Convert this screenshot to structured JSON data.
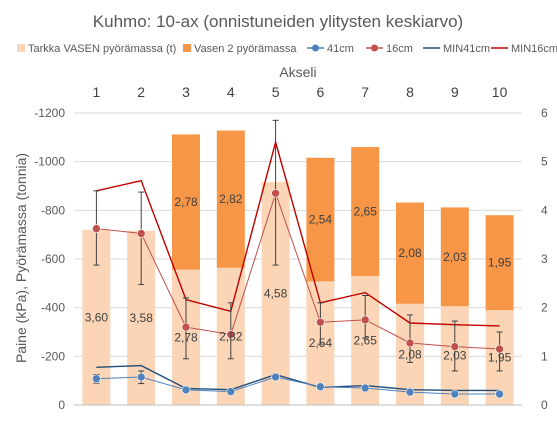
{
  "chart_data": {
    "type": "bar",
    "title": "Kuhmo: 10-ax (onnistuneiden ylitysten keskiarvo)",
    "xlabel": "Akseli",
    "ylabel": "Paine (kPa), Pyörämassa (tonnia)",
    "categories": [
      "1",
      "2",
      "3",
      "4",
      "5",
      "6",
      "7",
      "8",
      "9",
      "10"
    ],
    "ylim_left": [
      0,
      -1200
    ],
    "left_ticks": [
      "-1200",
      "-1000",
      "-800",
      "-600",
      "-400",
      "-200",
      "0"
    ],
    "ylim_right": [
      0,
      6
    ],
    "right_ticks": [
      "6",
      "5",
      "4",
      "3",
      "2",
      "1",
      "0"
    ],
    "bar_series": [
      {
        "name": "Tarkka VASEN pyörämassa (t)",
        "color": "#FBD5B5",
        "values": [
          3.6,
          3.58,
          2.78,
          2.82,
          4.58,
          2.54,
          2.65,
          2.08,
          2.03,
          1.95
        ],
        "labels": [
          "3,60",
          "3,58",
          "2,78",
          "2,82",
          "4,58",
          "2,54",
          "2,65",
          "2,08",
          "2,03",
          "1,95"
        ]
      },
      {
        "name": "Vasen 2 pyörämassa",
        "color": "#F79646",
        "values": [
          null,
          null,
          2.78,
          2.82,
          null,
          2.54,
          2.65,
          2.08,
          2.03,
          1.95
        ],
        "labels": [
          "",
          "",
          "2,78",
          "2,82",
          "",
          "2,54",
          "2,65",
          "2,08",
          "2,03",
          "1,95"
        ]
      }
    ],
    "line_series": [
      {
        "name": "41cm",
        "color": "#4F81BD",
        "marker": "circle",
        "values": [
          -108,
          -115,
          -62,
          -55,
          -115,
          -75,
          -70,
          -53,
          -45,
          -45
        ],
        "err_low": [
          -90,
          -88,
          -52,
          -43,
          -105,
          -67,
          -58,
          -48,
          -37,
          -34
        ],
        "err_high": [
          -125,
          -140,
          -70,
          -67,
          -127,
          -82,
          -80,
          -59,
          -56,
          -54
        ]
      },
      {
        "name": "16cm",
        "color": "#C0504D",
        "marker": "circle",
        "values": [
          -725,
          -705,
          -320,
          -290,
          -870,
          -340,
          -350,
          -255,
          -240,
          -230
        ],
        "err_low": [
          -575,
          -495,
          -190,
          -190,
          -575,
          -250,
          -275,
          -175,
          -140,
          -140
        ],
        "err_high": [
          -880,
          -875,
          -440,
          -420,
          -1170,
          -420,
          -450,
          -370,
          -345,
          -300
        ]
      },
      {
        "name": "MIN41cm",
        "color": "#1F4E79",
        "marker": "none",
        "values": [
          -155,
          -162,
          -68,
          -63,
          -125,
          -72,
          -80,
          -63,
          -60,
          -60
        ]
      },
      {
        "name": "MIN16cm",
        "color": "#C00000",
        "marker": "none",
        "values": [
          -880,
          -922,
          -433,
          -385,
          -1080,
          -420,
          -462,
          -337,
          -330,
          -325
        ]
      }
    ],
    "legend_position": "top",
    "grid": true
  }
}
